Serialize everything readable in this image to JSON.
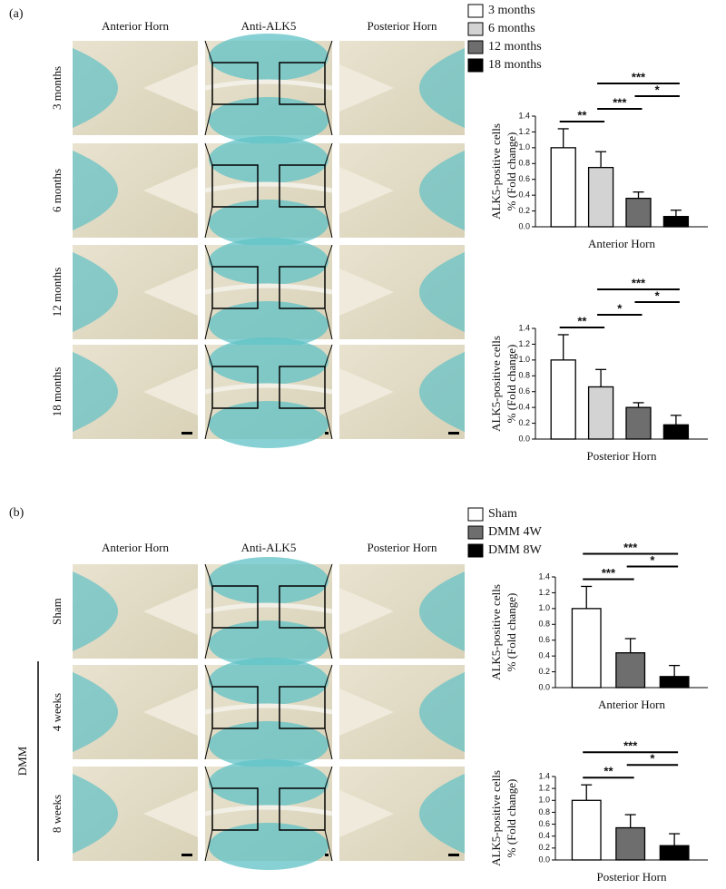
{
  "panels": [
    {
      "label": "(a)",
      "columns": [
        "Anterior Horn",
        "Anti-ALK5",
        "Posterior Horn"
      ],
      "rows": [
        "3 months",
        "6 months",
        "12 months",
        "18 months"
      ],
      "legend": [
        {
          "name": "3 months",
          "color": "#ffffff"
        },
        {
          "name": "6 months",
          "color": "#d3d3d3"
        },
        {
          "name": "12 months",
          "color": "#6e6e6e"
        },
        {
          "name": "18 months",
          "color": "#000000"
        }
      ]
    },
    {
      "label": "(b)",
      "columns": [
        "Anterior Horn",
        "Anti-ALK5",
        "Posterior Horn"
      ],
      "rows": [
        "Sham",
        "4 weeks",
        "8 weeks"
      ],
      "group": "DMM",
      "legend": [
        {
          "name": "Sham",
          "color": "#ffffff"
        },
        {
          "name": "DMM 4W",
          "color": "#6e6e6e"
        },
        {
          "name": "DMM 8W",
          "color": "#000000"
        }
      ]
    }
  ],
  "chart_data": [
    {
      "type": "bar",
      "ylabel": [
        "ALK5-positive cells",
        "% (Fold change)"
      ],
      "xlabel": "Anterior Horn",
      "values": [
        1.0,
        0.75,
        0.36,
        0.13
      ],
      "errors": [
        0.24,
        0.2,
        0.08,
        0.08
      ],
      "colors": [
        "#ffffff",
        "#d3d3d3",
        "#6e6e6e",
        "#000000"
      ],
      "ylim": [
        0,
        1.4
      ],
      "yticks": [
        {
          "value": 0,
          "label": "0.0"
        },
        0.2,
        0.4,
        0.6,
        0.8,
        {
          "value": 1,
          "label": "1.0"
        },
        1.2,
        1.4
      ],
      "annotations": [
        {
          "text": "**",
          "from": 0,
          "to": 1
        },
        {
          "text": "***",
          "from": 1,
          "to": 3
        },
        {
          "text": "***",
          "from": 1,
          "to": 2
        },
        {
          "text": "*",
          "from": 2,
          "to": 3
        }
      ]
    },
    {
      "type": "bar",
      "ylabel": [
        "ALK5-positive cells",
        "% (Fold change)"
      ],
      "xlabel": "Posterior Horn",
      "values": [
        1.0,
        0.66,
        0.4,
        0.18
      ],
      "errors": [
        0.32,
        0.22,
        0.06,
        0.12
      ],
      "colors": [
        "#ffffff",
        "#d3d3d3",
        "#6e6e6e",
        "#000000"
      ],
      "ylim": [
        0,
        1.4
      ],
      "yticks": [
        {
          "value": 0,
          "label": "0.0"
        },
        0.2,
        0.4,
        0.6,
        0.8,
        {
          "value": 1,
          "label": "1.0"
        },
        1.2,
        1.4
      ],
      "annotations": [
        {
          "text": "**",
          "from": 0,
          "to": 1
        },
        {
          "text": "***",
          "from": 1,
          "to": 3
        },
        {
          "text": "*",
          "from": 1,
          "to": 2
        },
        {
          "text": "*",
          "from": 2,
          "to": 3
        }
      ]
    },
    {
      "type": "bar",
      "ylabel": [
        "ALK5-positive cells",
        "% (Fold change)"
      ],
      "xlabel": "Anterior Horn",
      "values": [
        1.0,
        0.44,
        0.14
      ],
      "errors": [
        0.28,
        0.18,
        0.14
      ],
      "colors": [
        "#ffffff",
        "#6e6e6e",
        "#000000"
      ],
      "ylim": [
        0,
        1.4
      ],
      "yticks": [
        {
          "value": 0,
          "label": "0.0"
        },
        0.2,
        0.4,
        0.6,
        0.8,
        {
          "value": 1,
          "label": "1.0"
        },
        1.2,
        1.4
      ],
      "annotations": [
        {
          "text": "***",
          "from": 0,
          "to": 2
        },
        {
          "text": "***",
          "from": 0,
          "to": 1
        },
        {
          "text": "*",
          "from": 1,
          "to": 2
        }
      ]
    },
    {
      "type": "bar",
      "ylabel": [
        "ALK5-positive cells",
        "% (Fold change)"
      ],
      "xlabel": "Posterior Horn",
      "values": [
        1.0,
        0.54,
        0.24
      ],
      "errors": [
        0.26,
        0.22,
        0.2
      ],
      "colors": [
        "#ffffff",
        "#6e6e6e",
        "#000000"
      ],
      "ylim": [
        0,
        1.4
      ],
      "yticks": [
        {
          "value": 0,
          "label": "0.0"
        },
        0.2,
        0.4,
        0.6,
        0.8,
        {
          "value": 1,
          "label": "1.0"
        },
        1.2,
        1.4
      ],
      "annotations": [
        {
          "text": "**",
          "from": 0,
          "to": 1
        },
        {
          "text": "***",
          "from": 0,
          "to": 2
        },
        {
          "text": "*",
          "from": 1,
          "to": 2
        }
      ]
    }
  ]
}
